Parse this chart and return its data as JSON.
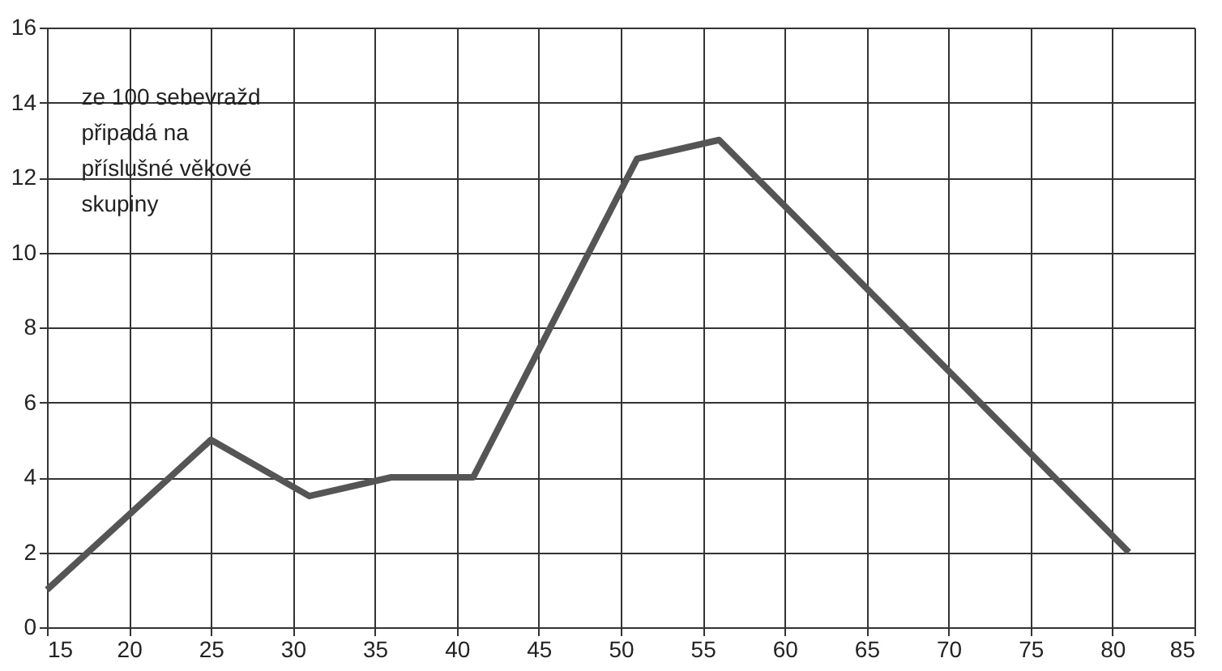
{
  "chart_data": {
    "type": "line",
    "x": [
      15,
      25,
      31,
      36,
      41,
      51,
      56,
      81
    ],
    "series": [
      {
        "color": "#555555",
        "values": [
          1,
          5,
          3.5,
          4,
          4,
          12.5,
          13,
          2
        ]
      }
    ],
    "xlim": [
      15,
      85
    ],
    "xticks": [
      15,
      20,
      25,
      30,
      35,
      40,
      45,
      50,
      55,
      60,
      65,
      70,
      75,
      80,
      85
    ],
    "ylim": [
      0,
      16
    ],
    "yticks": [
      0,
      2,
      4,
      6,
      8,
      10,
      12,
      14,
      16
    ],
    "grid": true,
    "line_style": "solid",
    "marker": "none",
    "annotations": [
      "ze 100 sebevražd připadá na příslušné věkové skupiny"
    ]
  }
}
